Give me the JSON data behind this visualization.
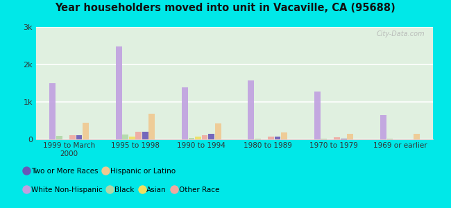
{
  "title": "Year householders moved into unit in Vacaville, CA (95688)",
  "categories": [
    "1999 to March\n2000",
    "1995 to 1998",
    "1990 to 1994",
    "1980 to 1989",
    "1970 to 1979",
    "1969 or earlier"
  ],
  "series_order": [
    "White Non-Hispanic",
    "Black",
    "Asian",
    "Other Race",
    "Two or More Races",
    "Hispanic or Latino"
  ],
  "series": {
    "White Non-Hispanic": [
      1500,
      2480,
      1380,
      1580,
      1280,
      640
    ],
    "Black": [
      100,
      130,
      40,
      25,
      15,
      15
    ],
    "Asian": [
      0,
      80,
      80,
      0,
      0,
      0
    ],
    "Other Race": [
      110,
      200,
      110,
      65,
      50,
      0
    ],
    "Two or More Races": [
      110,
      200,
      140,
      65,
      25,
      0
    ],
    "Hispanic or Latino": [
      450,
      680,
      430,
      185,
      140,
      155
    ]
  },
  "colors": {
    "White Non-Hispanic": "#c0a0e0",
    "Black": "#b0d8a8",
    "Asian": "#f0e060",
    "Other Race": "#f0a8a0",
    "Two or More Races": "#6858b8",
    "Hispanic or Latino": "#f0c890"
  },
  "ylim": [
    0,
    3000
  ],
  "yticks": [
    0,
    1000,
    2000,
    3000
  ],
  "ytick_labels": [
    "0",
    "1k",
    "2k",
    "3k"
  ],
  "background_color": "#00e8e8",
  "plot_bg": "#e0f0e0",
  "bar_width": 0.1,
  "watermark": "City-Data.com",
  "legend_row1": [
    "White Non-Hispanic",
    "Black",
    "Asian",
    "Other Race"
  ],
  "legend_row2": [
    "Two or More Races",
    "Hispanic or Latino"
  ]
}
